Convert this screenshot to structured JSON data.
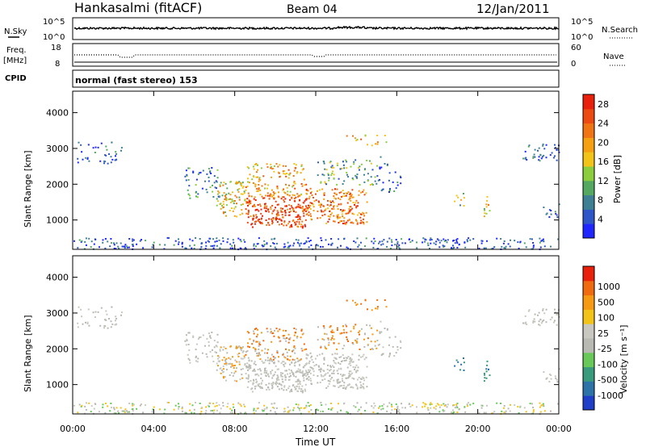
{
  "header": {
    "station": "Hankasalmi (fitACF)",
    "beam": "Beam 04",
    "date": "12/Jan/2011"
  },
  "strips": {
    "nsky": {
      "label": "N.Sky",
      "tick_top": "10^5",
      "tick_bottom": "10^0",
      "right_label": "N.Search",
      "right_tick_top": "10^5",
      "right_tick_bottom": "10^0"
    },
    "freq": {
      "label_line1": "Freq.",
      "label_line2": "[MHz]",
      "tick_top": "18",
      "tick_bottom": "8",
      "right_label": "Nave",
      "right_tick_top": "60",
      "right_tick_bottom": "0"
    },
    "cpid": {
      "label": "CPID",
      "text": "normal (fast stereo) 153"
    }
  },
  "chart_data": [
    {
      "type": "heatmap",
      "title": "Power",
      "ylabel": "Slant Range [km]",
      "xlabel": "",
      "yticks": [
        "1000",
        "2000",
        "3000",
        "4000"
      ],
      "ylim": [
        180,
        4600
      ],
      "xlim_hours": [
        0,
        24
      ],
      "colorbar": {
        "label": "Power [dB]",
        "ticks": [
          "4",
          "8",
          "12",
          "16",
          "20",
          "24",
          "28"
        ],
        "range": [
          0,
          30
        ],
        "colors": [
          "#1f26ff",
          "#2f56c8",
          "#3f7f94",
          "#55a860",
          "#8ccd3e",
          "#f2c41a",
          "#f5a012",
          "#f07414",
          "#ec4a12",
          "#e8200c"
        ]
      }
    },
    {
      "type": "heatmap",
      "title": "Velocity",
      "ylabel": "Slant Range [km]",
      "xlabel": "Time UT",
      "xticks": [
        "00:00",
        "04:00",
        "08:00",
        "12:00",
        "16:00",
        "20:00",
        "00:00"
      ],
      "yticks": [
        "1000",
        "2000",
        "3000",
        "4000"
      ],
      "ylim": [
        180,
        4600
      ],
      "xlim_hours": [
        0,
        24
      ],
      "colorbar": {
        "label": "Velocity [m s⁻¹]",
        "ticks": [
          "1000",
          "500",
          "100",
          "25",
          "-25",
          "-100",
          "-500",
          "-1000"
        ],
        "colors": [
          "#1f3fc8",
          "#2d73a8",
          "#3a9a7c",
          "#69c85a",
          "#b9b9b4",
          "#c8c8c0",
          "#f2c41a",
          "#f59a12",
          "#f06a10",
          "#e8200c"
        ]
      }
    }
  ]
}
